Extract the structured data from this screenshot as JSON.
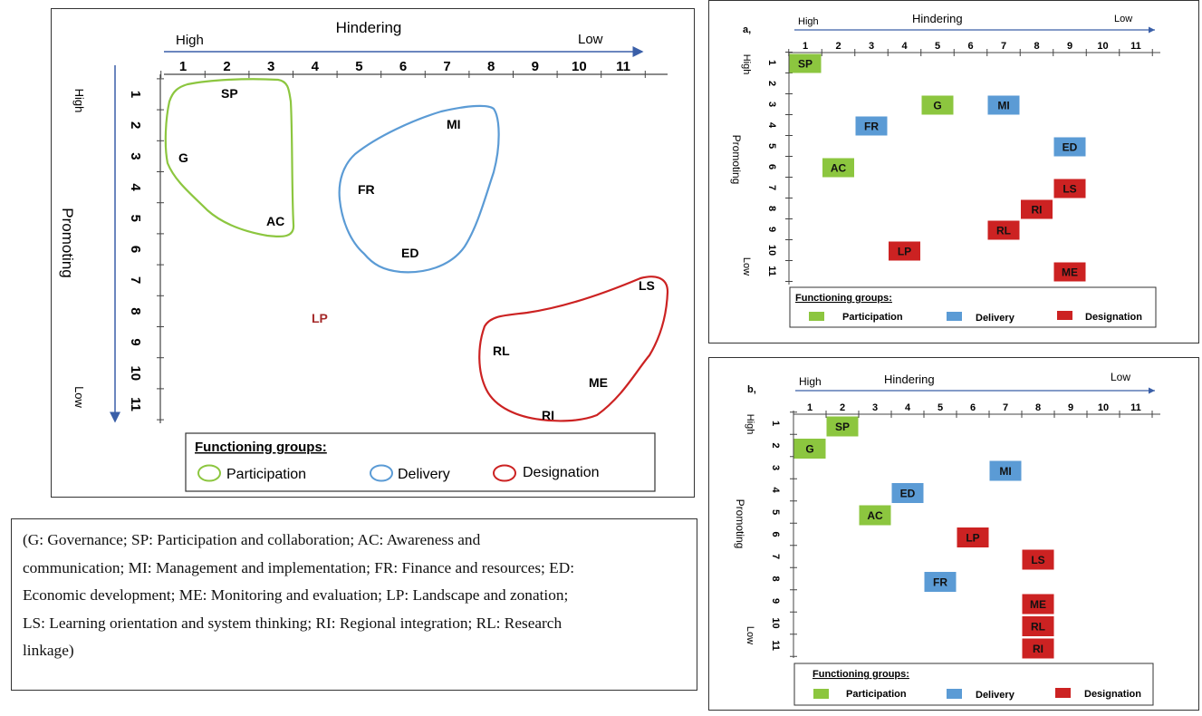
{
  "main": {
    "hindering_title": "Hindering",
    "high": "High",
    "low": "Low",
    "promoting_title": "Promoting",
    "ticks": [
      "1",
      "2",
      "3",
      "4",
      "5",
      "6",
      "7",
      "8",
      "9",
      "10",
      "11"
    ],
    "labels": {
      "SP": "SP",
      "G": "G",
      "AC": "AC",
      "MI": "MI",
      "FR": "FR",
      "ED": "ED",
      "LP": "LP",
      "LS": "LS",
      "RL": "RL",
      "ME": "ME",
      "RI": "RI"
    },
    "legend": {
      "title": "Functioning groups:",
      "participation": "Participation",
      "delivery": "Delivery",
      "designation": "Designation"
    }
  },
  "panel_a": {
    "letter": "a,",
    "hindering_title": "Hindering",
    "high": "High",
    "low": "Low",
    "promoting_title": "Promoting",
    "ticks": [
      "1",
      "2",
      "3",
      "4",
      "5",
      "6",
      "7",
      "8",
      "9",
      "10",
      "11"
    ],
    "boxes": {
      "SP": "SP",
      "G": "G",
      "MI": "MI",
      "FR": "FR",
      "ED": "ED",
      "AC": "AC",
      "LS": "LS",
      "RI": "RI",
      "RL": "RL",
      "LP": "LP",
      "ME": "ME"
    },
    "legend": {
      "title": "Functioning groups:",
      "participation": "Participation",
      "delivery": "Delivery",
      "designation": "Designation"
    }
  },
  "panel_b": {
    "letter": "b,",
    "hindering_title": "Hindering",
    "high": "High",
    "low": "Low",
    "promoting_title": "Promoting",
    "ticks": [
      "1",
      "2",
      "3",
      "4",
      "5",
      "6",
      "7",
      "8",
      "9",
      "10",
      "11"
    ],
    "boxes": {
      "SP": "SP",
      "G": "G",
      "MI": "MI",
      "ED": "ED",
      "AC": "AC",
      "LP": "LP",
      "LS": "LS",
      "FR": "FR",
      "ME": "ME",
      "RL": "RL",
      "RI": "RI"
    },
    "legend": {
      "title": "Functioning groups:",
      "participation": "Participation",
      "delivery": "Delivery",
      "designation": "Designation"
    }
  },
  "abbreviations": {
    "line1": "(G: Governance; SP: Participation and collaboration; AC: Awareness and",
    "line2": "communication; MI: Management and implementation; FR: Finance and resources; ED:",
    "line3": "Economic development; ME: Monitoring and evaluation; LP: Landscape and zonation;",
    "line4": "LS: Learning orientation and system thinking; RI: Regional integration; RL: Research",
    "line5": "linkage)"
  },
  "colors": {
    "participation": "#8cc63f",
    "delivery": "#5b9bd5",
    "designation": "#cc2222",
    "axis": "#3a5fa8",
    "lp_text": "#a52a2a"
  }
}
